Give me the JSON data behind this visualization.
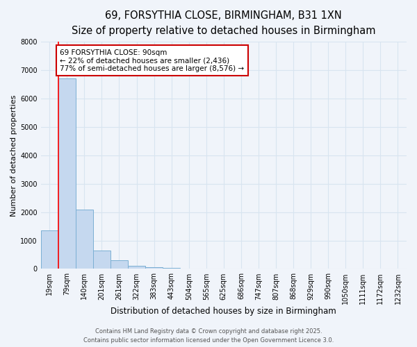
{
  "title_line1": "69, FORSYTHIA CLOSE, BIRMINGHAM, B31 1XN",
  "title_line2": "Size of property relative to detached houses in Birmingham",
  "xlabel": "Distribution of detached houses by size in Birmingham",
  "ylabel": "Number of detached properties",
  "categories": [
    "19sqm",
    "79sqm",
    "140sqm",
    "201sqm",
    "261sqm",
    "322sqm",
    "383sqm",
    "443sqm",
    "504sqm",
    "565sqm",
    "625sqm",
    "686sqm",
    "747sqm",
    "807sqm",
    "868sqm",
    "929sqm",
    "990sqm",
    "1050sqm",
    "1111sqm",
    "1172sqm",
    "1232sqm"
  ],
  "values": [
    1350,
    6700,
    2100,
    650,
    300,
    100,
    60,
    40,
    10,
    3,
    3,
    0,
    0,
    0,
    0,
    0,
    0,
    0,
    0,
    0,
    0
  ],
  "bar_color": "#c5d8ef",
  "bar_edge_color": "#7bafd4",
  "red_line_x": 0.5,
  "annotation_text": "69 FORSYTHIA CLOSE: 90sqm\n← 22% of detached houses are smaller (2,436)\n77% of semi-detached houses are larger (8,576) →",
  "annotation_box_facecolor": "#ffffff",
  "annotation_box_edgecolor": "#cc0000",
  "ylim": [
    0,
    8000
  ],
  "yticks": [
    0,
    1000,
    2000,
    3000,
    4000,
    5000,
    6000,
    7000,
    8000
  ],
  "fig_bg_color": "#f0f4fa",
  "plot_bg_color": "#f0f4fa",
  "grid_color": "#d8e4f0",
  "footer_line1": "Contains HM Land Registry data © Crown copyright and database right 2025.",
  "footer_line2": "Contains public sector information licensed under the Open Government Licence 3.0.",
  "title1_fontsize": 10.5,
  "title2_fontsize": 9.5,
  "xlabel_fontsize": 8.5,
  "ylabel_fontsize": 8,
  "tick_fontsize": 7,
  "footer_fontsize": 6,
  "annot_fontsize": 7.5
}
